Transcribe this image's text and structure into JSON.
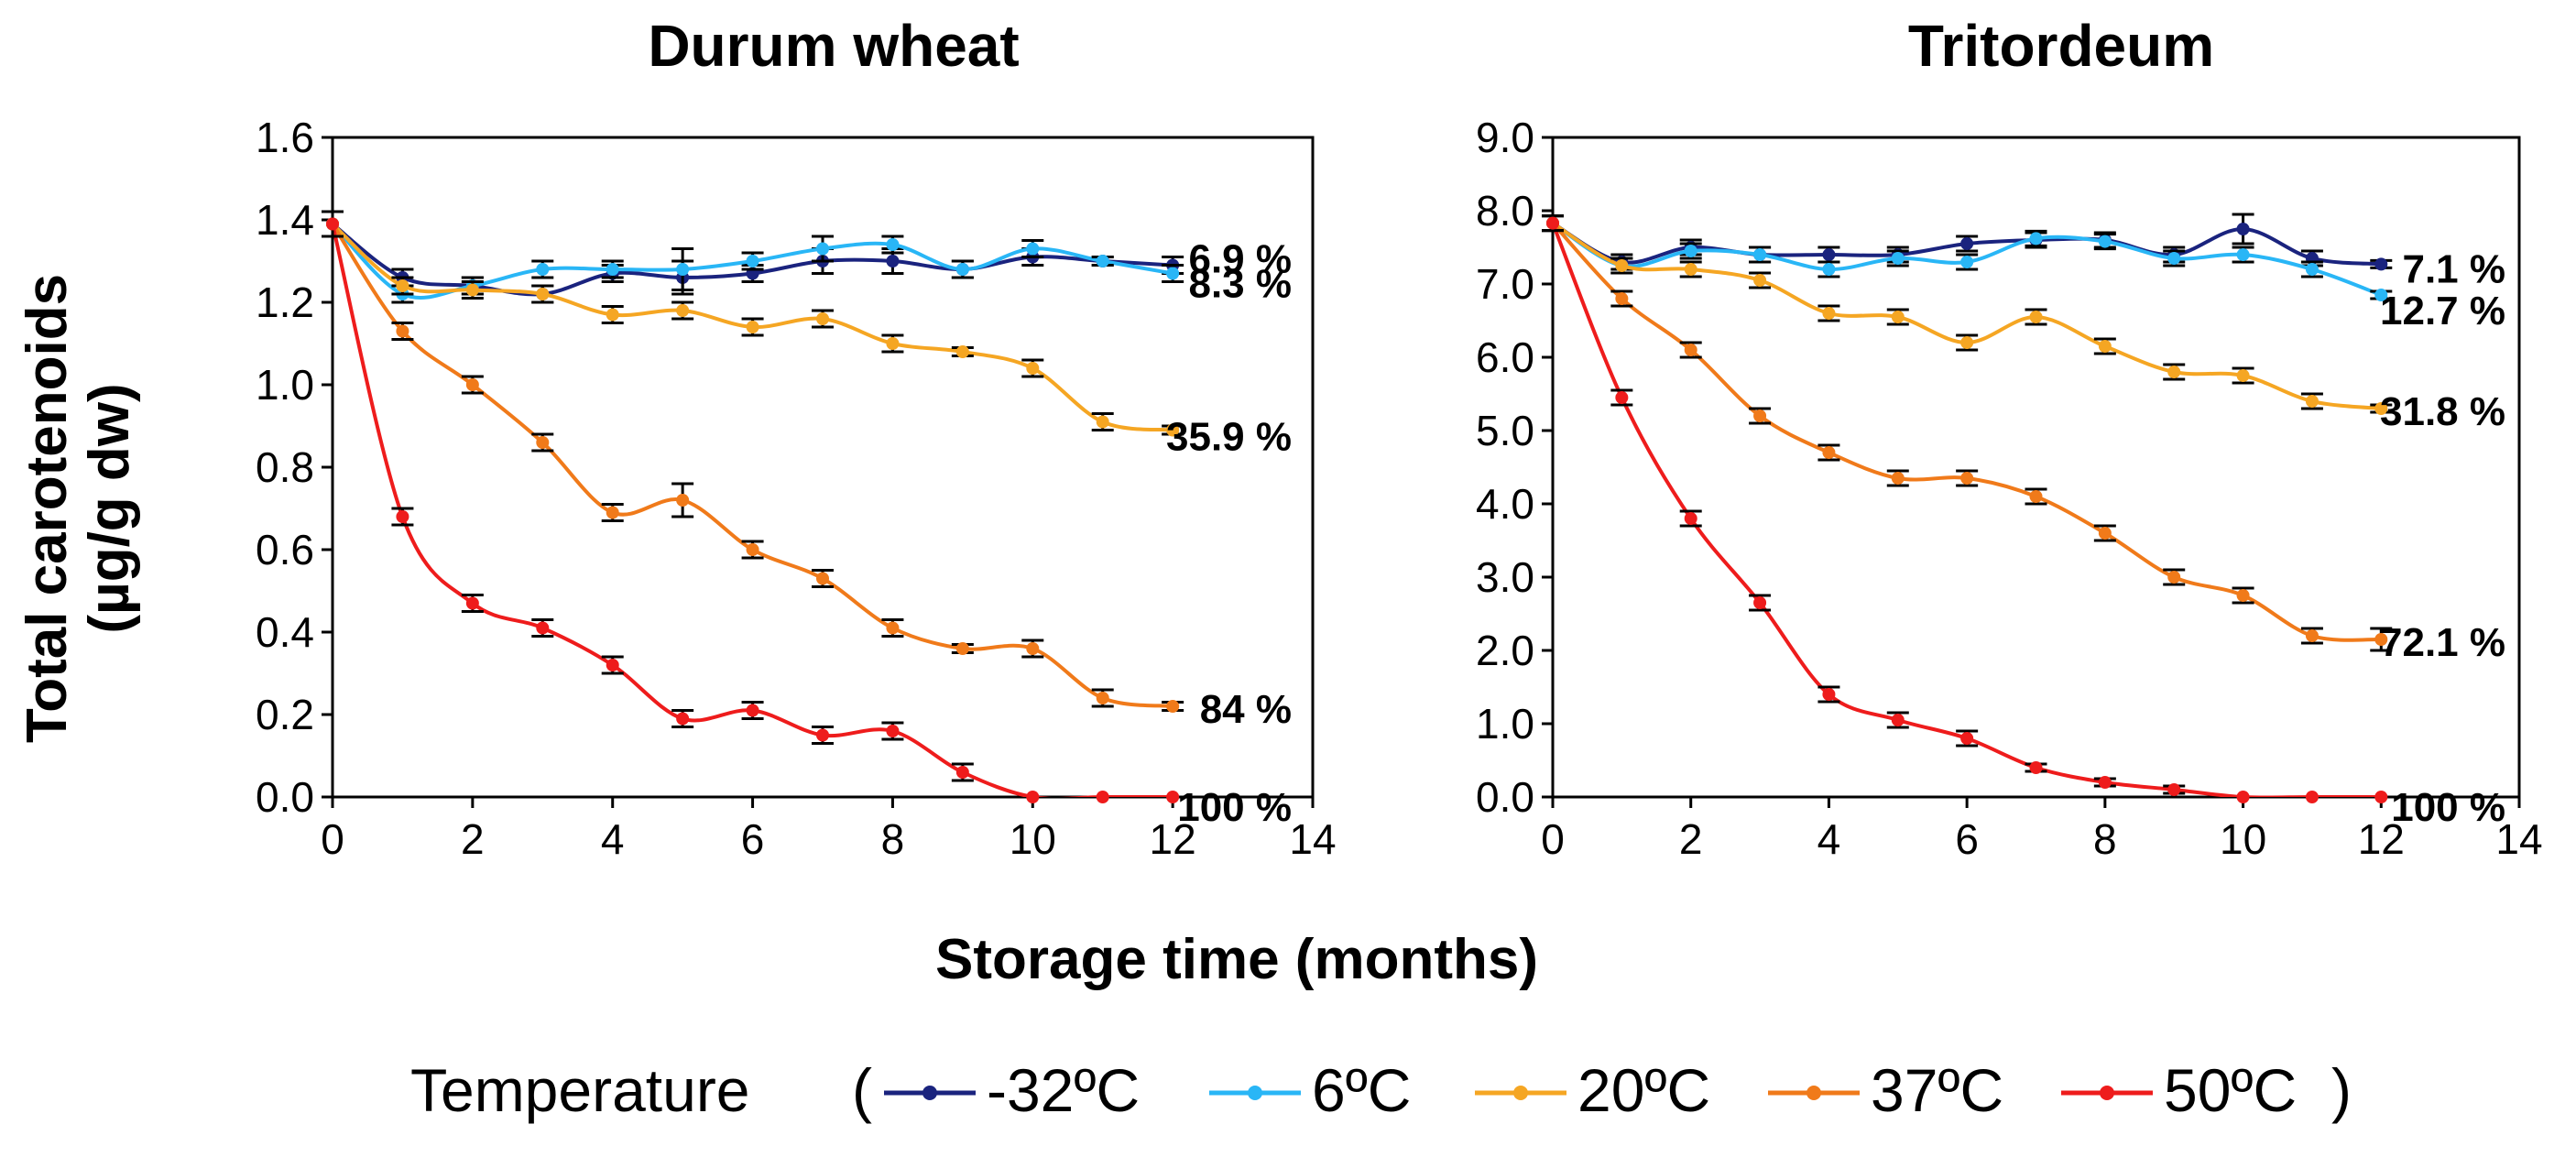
{
  "figure": {
    "y_axis_label_line1": "Total carotenoids",
    "y_axis_label_line2": "(µg/g dw)",
    "x_axis_label": "Storage time (months)",
    "legend": {
      "title": "Temperature",
      "open_paren": "(",
      "close_paren": ")",
      "items": [
        "-32ºC",
        "6ºC",
        "20ºC",
        "37ºC",
        "50ºC"
      ]
    }
  },
  "colors": {
    "-32ºC": "#1a237e",
    "6ºC": "#29b6f6",
    "20ºC": "#f5a623",
    "37ºC": "#f07a1a",
    "50ºC": "#ee1c1c"
  },
  "chart_data": [
    {
      "type": "scatter",
      "title": "Durum wheat",
      "xlabel": "Storage time (months)",
      "ylabel": "Total carotenoids (µg/g dw)",
      "xlim": [
        0,
        14
      ],
      "ylim": [
        0,
        1.6
      ],
      "xticks": [
        0,
        2,
        4,
        6,
        8,
        10,
        12,
        14
      ],
      "yticks": [
        "0.0",
        "0.2",
        "0.4",
        "0.6",
        "0.8",
        "1.0",
        "1.2",
        "1.4",
        "1.6"
      ],
      "x": [
        0,
        1,
        2,
        3,
        4,
        5,
        6,
        7,
        8,
        9,
        10,
        11,
        12
      ],
      "series": [
        {
          "name": "-32ºC",
          "values": [
            1.39,
            1.26,
            1.24,
            1.22,
            1.27,
            1.26,
            1.27,
            1.3,
            1.3,
            1.28,
            1.31,
            1.3,
            1.29
          ],
          "errors": [
            0.03,
            0.02,
            0.02,
            0.02,
            0.02,
            0.04,
            0.02,
            0.03,
            0.03,
            0.02,
            0.02,
            0.01,
            0.02
          ],
          "end_label": "6.9 %"
        },
        {
          "name": "6ºC",
          "values": [
            1.39,
            1.22,
            1.24,
            1.28,
            1.28,
            1.28,
            1.3,
            1.33,
            1.34,
            1.28,
            1.33,
            1.3,
            1.27
          ],
          "errors": [
            0.03,
            0.02,
            0.02,
            0.02,
            0.02,
            0.05,
            0.02,
            0.03,
            0.02,
            0.02,
            0.02,
            0.01,
            0.02
          ],
          "end_label": "8.3 %"
        },
        {
          "name": "20ºC",
          "values": [
            1.39,
            1.24,
            1.23,
            1.22,
            1.17,
            1.18,
            1.14,
            1.16,
            1.1,
            1.08,
            1.04,
            0.91,
            0.89
          ],
          "errors": [
            0.03,
            0.02,
            0.02,
            0.02,
            0.02,
            0.02,
            0.02,
            0.02,
            0.02,
            0.01,
            0.02,
            0.02,
            0.01
          ],
          "end_label": "35.9 %"
        },
        {
          "name": "37ºC",
          "values": [
            1.39,
            1.13,
            1.0,
            0.86,
            0.69,
            0.72,
            0.6,
            0.53,
            0.41,
            0.36,
            0.36,
            0.24,
            0.22
          ],
          "errors": [
            0.03,
            0.02,
            0.02,
            0.02,
            0.02,
            0.04,
            0.02,
            0.02,
            0.02,
            0.01,
            0.02,
            0.02,
            0.01
          ],
          "end_label": "84 %"
        },
        {
          "name": "50ºC",
          "values": [
            1.39,
            0.68,
            0.47,
            0.41,
            0.32,
            0.19,
            0.21,
            0.15,
            0.16,
            0.06,
            0.0,
            0.0,
            0.0
          ],
          "errors": [
            0.03,
            0.02,
            0.02,
            0.02,
            0.02,
            0.02,
            0.02,
            0.02,
            0.02,
            0.02,
            0.0,
            0.0,
            0.0
          ],
          "end_label": "100 %"
        }
      ]
    },
    {
      "type": "scatter",
      "title": "Tritordeum",
      "xlabel": "Storage time (months)",
      "ylabel": "",
      "xlim": [
        0,
        14
      ],
      "ylim": [
        0,
        9
      ],
      "xticks": [
        0,
        2,
        4,
        6,
        8,
        10,
        12,
        14
      ],
      "yticks": [
        "0.0",
        "1.0",
        "2.0",
        "3.0",
        "4.0",
        "5.0",
        "6.0",
        "7.0",
        "8.0",
        "9.0"
      ],
      "x": [
        0,
        1,
        2,
        3,
        4,
        5,
        6,
        7,
        8,
        9,
        10,
        11,
        12
      ],
      "series": [
        {
          "name": "-32ºC",
          "values": [
            7.83,
            7.3,
            7.5,
            7.4,
            7.4,
            7.4,
            7.55,
            7.6,
            7.6,
            7.4,
            7.75,
            7.35,
            7.27
          ],
          "errors": [
            0.1,
            0.1,
            0.1,
            0.1,
            0.1,
            0.1,
            0.1,
            0.1,
            0.1,
            0.1,
            0.2,
            0.1,
            0.05
          ],
          "end_label": "7.1 %"
        },
        {
          "name": "6ºC",
          "values": [
            7.83,
            7.25,
            7.45,
            7.4,
            7.2,
            7.35,
            7.3,
            7.62,
            7.58,
            7.35,
            7.4,
            7.2,
            6.85
          ],
          "errors": [
            0.1,
            0.1,
            0.1,
            0.1,
            0.1,
            0.1,
            0.1,
            0.1,
            0.1,
            0.1,
            0.1,
            0.1,
            0.05
          ],
          "end_label": "12.7 %"
        },
        {
          "name": "20ºC",
          "values": [
            7.83,
            7.25,
            7.2,
            7.05,
            6.6,
            6.55,
            6.2,
            6.55,
            6.15,
            5.8,
            5.75,
            5.4,
            5.3
          ],
          "errors": [
            0.1,
            0.1,
            0.1,
            0.1,
            0.1,
            0.1,
            0.1,
            0.1,
            0.1,
            0.1,
            0.1,
            0.1,
            0.05
          ],
          "end_label": "31.8 %"
        },
        {
          "name": "37ºC",
          "values": [
            7.83,
            6.8,
            6.1,
            5.2,
            4.7,
            4.35,
            4.35,
            4.1,
            3.6,
            3.0,
            2.75,
            2.2,
            2.15
          ],
          "errors": [
            0.1,
            0.1,
            0.1,
            0.1,
            0.1,
            0.1,
            0.1,
            0.1,
            0.1,
            0.1,
            0.1,
            0.1,
            0.15
          ],
          "end_label": "72.1 %"
        },
        {
          "name": "50ºC",
          "values": [
            7.83,
            5.45,
            3.8,
            2.65,
            1.4,
            1.05,
            0.8,
            0.4,
            0.2,
            0.1,
            0.0,
            0.0,
            0.0
          ],
          "errors": [
            0.1,
            0.1,
            0.1,
            0.1,
            0.1,
            0.1,
            0.1,
            0.05,
            0.05,
            0.05,
            0.0,
            0.0,
            0.0
          ],
          "end_label": "100 %"
        }
      ]
    }
  ]
}
